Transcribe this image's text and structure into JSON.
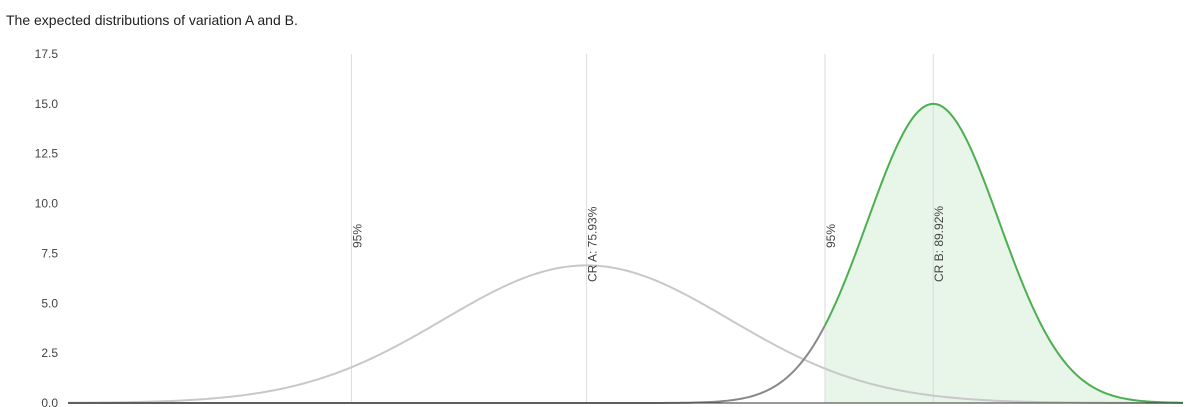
{
  "chart_data": {
    "type": "line",
    "title": "The expected distributions of variation A and B.",
    "xlabel": "",
    "ylabel": "",
    "ylim": [
      0,
      17.5
    ],
    "xlim": [
      0.55,
      1.0
    ],
    "y_ticks": [
      "0.0",
      "2.5",
      "5.0",
      "7.5",
      "10.0",
      "12.5",
      "15.0",
      "17.5"
    ],
    "grid": "horizontal-off",
    "series": [
      {
        "key": "A",
        "mean": 0.7593,
        "sd": 0.0578,
        "peak": 6.9,
        "color": "#c8c8c8",
        "stroke_width": 2,
        "fill": "none"
      },
      {
        "key": "B",
        "mean": 0.8992,
        "sd": 0.0266,
        "peak": 15.0,
        "color": "#4caf50",
        "stroke_width": 2,
        "fill": "#e8f5e9",
        "shade_from": 0.8555,
        "left_tail_color": "#888888"
      }
    ],
    "markers": [
      {
        "x": 0.6644,
        "label": "95%"
      },
      {
        "x": 0.7593,
        "label": "CR A: 75.93%"
      },
      {
        "x": 0.8555,
        "label": "95%"
      },
      {
        "x": 0.8992,
        "label": "CR B: 89.92%"
      }
    ],
    "colors": {
      "axis": "#333333",
      "marker_line": "#dcdcdc",
      "text": "#444444"
    }
  }
}
